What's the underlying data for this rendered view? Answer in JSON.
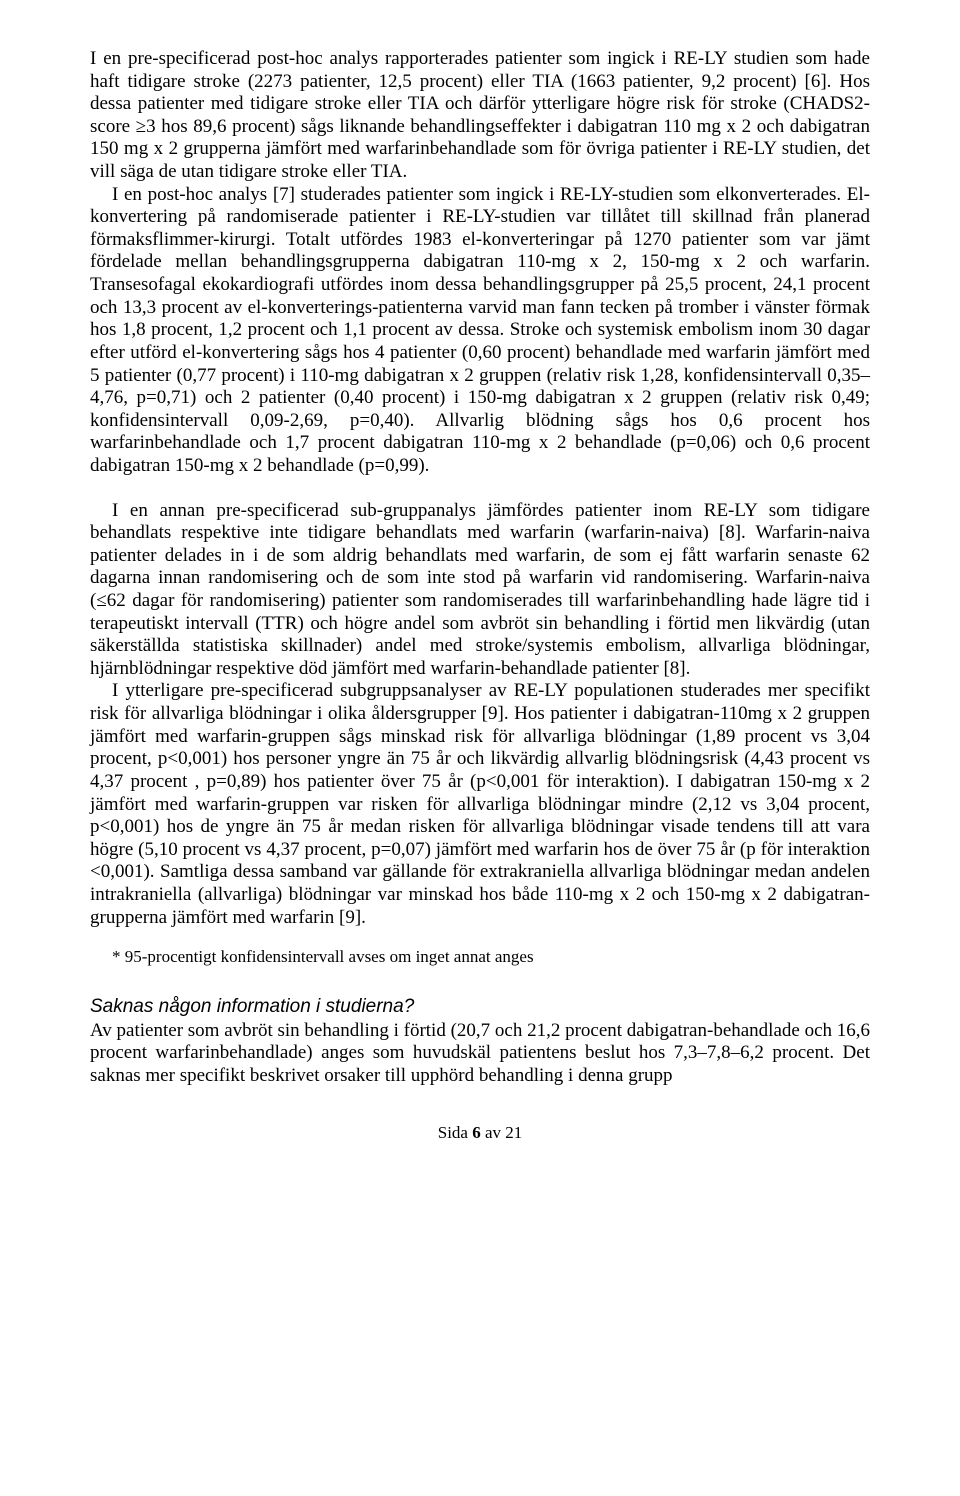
{
  "paragraphs": {
    "p1": "I en pre-specificerad post-hoc analys rapporterades patienter som ingick i RE-LY studien som hade haft tidigare stroke (2273 patienter, 12,5 procent) eller TIA (1663 patienter, 9,2 procent) [6]. Hos dessa patienter med tidigare stroke eller TIA och därför ytterligare högre risk för stroke (CHADS2-score ≥3 hos 89,6 procent) sågs liknande behandlingseffekter i dabigatran 110 mg x 2 och dabigatran 150 mg x 2 grupperna jämfört med warfarinbehandlade som för övriga patienter i RE-LY studien, det vill säga de utan tidigare stroke eller TIA.",
    "p2": "I en post-hoc analys [7] studerades patienter som ingick i RE-LY-studien som elkonverterades. El-konvertering på randomiserade patienter i RE-LY-studien var tillåtet till skillnad från planerad förmaksflimmer-kirurgi. Totalt utfördes 1983 el-konverteringar på 1270 patienter som var jämt fördelade mellan behandlingsgrupperna dabigatran 110-mg x 2, 150-mg x 2 och warfarin. Transesofagal ekokardiografi utfördes inom dessa behandlingsgrupper på 25,5 procent, 24,1 procent och 13,3 procent av el-konverterings-patienterna varvid man fann tecken på tromber i vänster förmak hos 1,8 procent, 1,2 procent och 1,1 procent av dessa. Stroke och systemisk embolism inom 30 dagar efter utförd el-konvertering sågs hos 4 patienter (0,60 procent) behandlade med warfarin jämfört med 5 patienter (0,77 procent) i 110-mg dabigatran x 2 gruppen (relativ risk 1,28, konfidensintervall 0,35–4,76, p=0,71) och 2 patienter (0,40 procent) i 150-mg dabigatran x 2 gruppen (relativ risk 0,49; konfidensintervall 0,09-2,69, p=0,40). Allvarlig blödning sågs hos 0,6 procent hos warfarinbehandlade och 1,7 procent dabigatran 110-mg x 2 behandlade (p=0,06) och 0,6 procent dabigatran 150-mg x 2 behandlade (p=0,99).",
    "p3": "I en annan pre-specificerad sub-gruppanalys jämfördes patienter inom RE-LY som tidigare behandlats respektive inte tidigare behandlats med warfarin (warfarin-naiva) [8]. Warfarin-naiva patienter delades in i de som aldrig behandlats med warfarin, de som ej fått warfarin senaste 62 dagarna innan randomisering och de som inte stod på warfarin vid randomisering. Warfarin-naiva (≤62 dagar för randomisering) patienter som randomiserades till warfarinbehandling hade lägre tid i terapeutiskt intervall (TTR) och högre andel som avbröt sin behandling i förtid men likvärdig (utan säkerställda statistiska skillnader) andel med stroke/systemis embolism, allvarliga blödningar, hjärnblödningar respektive död jämfört med warfarin-behandlade patienter [8].",
    "p4": "I ytterligare pre-specificerad subgruppsanalyser av RE-LY populationen studerades mer specifikt risk för allvarliga blödningar i olika åldersgrupper [9]. Hos patienter i dabigatran-110mg x 2 gruppen jämfört med warfarin-gruppen sågs minskad risk för allvarliga blödningar (1,89 procent vs 3,04 procent, p<0,001) hos personer yngre än 75 år och likvärdig allvarlig blödningsrisk (4,43 procent vs 4,37 procent , p=0,89) hos patienter över 75 år (p<0,001 för interaktion). I dabigatran 150-mg x 2 jämfört med warfarin-gruppen var risken för allvarliga blödningar mindre (2,12 vs 3,04 procent, p<0,001) hos de yngre än 75 år medan risken för allvarliga blödningar visade tendens till att vara högre (5,10 procent vs 4,37 procent, p=0,07) jämfört med warfarin hos de över 75 år (p för interaktion <0,001). Samtliga dessa samband var gällande för extrakraniella allvarliga blödningar medan andelen intrakraniella (allvarliga) blödningar var minskad hos både 110-mg x 2 och 150-mg x 2 dabigatran-grupperna jämfört med warfarin [9]."
  },
  "footnote": "* 95-procentigt konfidensintervall avses om inget annat anges",
  "heading": "Saknas någon information i studierna?",
  "p5": "Av patienter som avbröt sin behandling i förtid (20,7 och 21,2 procent dabigatran-behandlade och 16,6 procent warfarinbehandlade) anges som huvudskäl patientens beslut hos 7,3–7,8–6,2 procent. Det saknas mer specifikt beskrivet orsaker till upphörd behandling i denna grupp",
  "footer_prefix": "Sida ",
  "footer_page": "6",
  "footer_suffix": " av 21"
}
